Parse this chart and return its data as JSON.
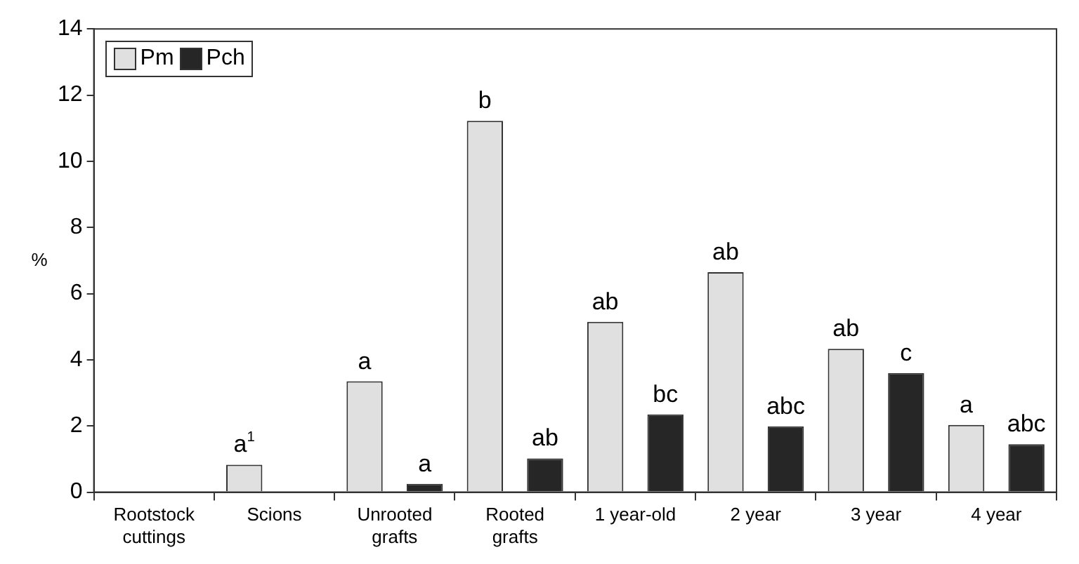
{
  "chart_data": {
    "type": "bar",
    "ylabel": "%",
    "categories": [
      "Rootstock\ncuttings",
      "Scions",
      "Unrooted\ngrafts",
      "Rooted\ngrafts",
      "1 year-old",
      "2 year",
      "3 year",
      "4 year"
    ],
    "series": [
      {
        "name": "Pm",
        "color": "#e0e0e0",
        "values": [
          0,
          0.83,
          3.35,
          11.22,
          5.15,
          6.65,
          4.33,
          2.03
        ]
      },
      {
        "name": "Pch",
        "color": "#262626",
        "values": [
          0,
          0,
          0.25,
          1.02,
          2.35,
          1.99,
          3.6,
          1.45
        ]
      }
    ],
    "ylim": [
      0,
      14
    ],
    "yticks": [
      0,
      2,
      4,
      6,
      8,
      10,
      12,
      14
    ],
    "grid": false,
    "legend": "top left",
    "annotations": [
      "a$^{1}$",
      "a",
      "a",
      "b",
      "ab",
      "ab",
      "bc",
      "ab",
      "abc",
      "ab",
      "c",
      "a",
      "abc"
    ]
  }
}
